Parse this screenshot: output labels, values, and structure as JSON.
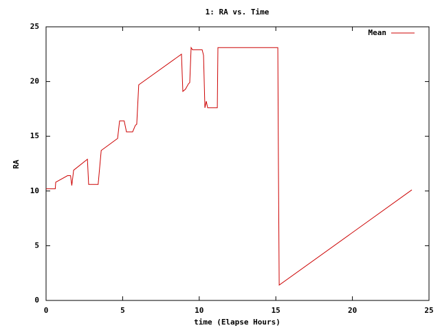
{
  "chart_data": {
    "type": "line",
    "title": "1: RA vs. Time",
    "x_label": "time (Elapse Hours)",
    "y_label": "RA",
    "x": [
      0,
      0.6,
      0.63,
      1.4,
      1.6,
      1.68,
      1.8,
      2.7,
      2.78,
      3.4,
      3.6,
      4.67,
      4.8,
      5.1,
      5.25,
      5.65,
      5.83,
      5.92,
      6.05,
      8.84,
      8.93,
      9.1,
      9.3,
      9.38,
      9.47,
      9.56,
      10.19,
      10.28,
      10.37,
      10.46,
      10.55,
      11.18,
      11.22,
      15.13,
      15.17,
      15.22,
      23.88
    ],
    "series": [
      {
        "name": "Mean",
        "color": "#cc0000",
        "values": [
          10.2,
          10.2,
          10.8,
          11.4,
          11.4,
          10.5,
          11.9,
          12.9,
          10.6,
          10.6,
          13.7,
          14.8,
          16.4,
          16.4,
          15.4,
          15.4,
          16.0,
          16.1,
          19.7,
          22.5,
          19.1,
          19.3,
          19.8,
          19.9,
          23.1,
          22.9,
          22.9,
          22.4,
          17.6,
          18.2,
          17.6,
          17.6,
          23.1,
          23.1,
          12.3,
          1.4,
          10.1
        ]
      }
    ],
    "xlim": [
      0,
      25
    ],
    "xticks": [
      0,
      5,
      10,
      15,
      20,
      25
    ],
    "ylim": [
      0,
      25
    ],
    "yticks": [
      0,
      5,
      10,
      15,
      20,
      25
    ],
    "legend_position": "top-right"
  }
}
